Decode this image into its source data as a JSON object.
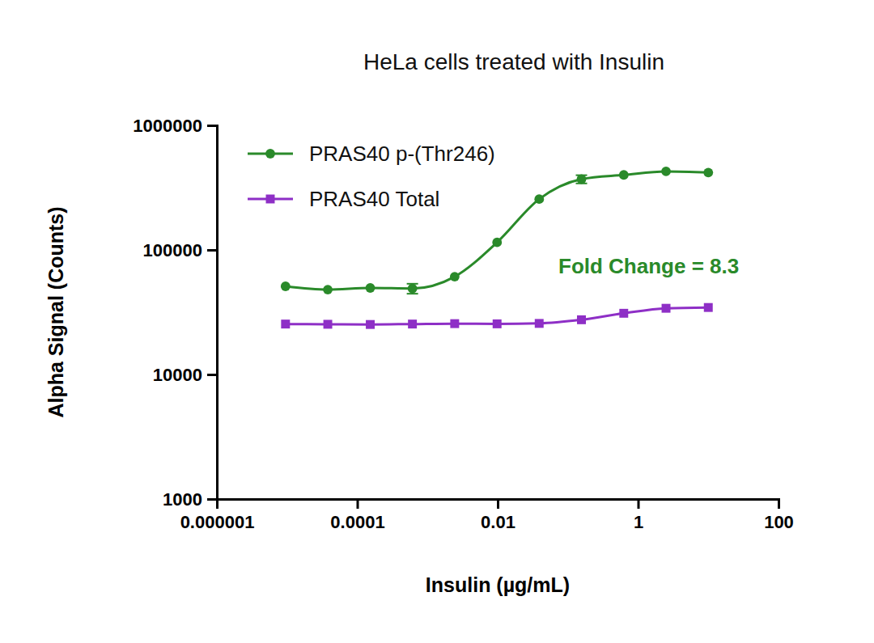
{
  "chart_data": {
    "type": "line",
    "title": "HeLa cells treated with Insulin",
    "x_label": "Insulin (µg/mL)",
    "y_label": "Alpha Signal (Counts)",
    "log": true,
    "grid": false,
    "legend": "upper left",
    "x": [
      9.5e-06,
      3.8e-05,
      0.000153,
      0.00061,
      0.00244,
      0.0098,
      0.039,
      0.156,
      0.625,
      2.5,
      10
    ],
    "xlim": [
      1e-06,
      100
    ],
    "xticks": [
      1e-06,
      0.0001,
      0.01,
      1,
      100
    ],
    "ylim": [
      1000,
      1000000
    ],
    "yticks": [
      1000,
      10000,
      100000,
      1000000
    ],
    "series": [
      {
        "name": "PRAS40 p-(Thr246)",
        "color": "#2a8a2a",
        "marker": "circle",
        "line_style": "solid",
        "values": [
          51000,
          48000,
          49500,
          49000,
          61000,
          115000,
          256000,
          370000,
          400000,
          427000,
          418000
        ],
        "errors": [
          null,
          null,
          null,
          4500,
          null,
          null,
          null,
          28000,
          null,
          null,
          null
        ]
      },
      {
        "name": "PRAS40 Total",
        "color": "#8e2fc6",
        "marker": "square",
        "line_style": "solid",
        "values": [
          25400,
          25300,
          25200,
          25400,
          25600,
          25500,
          25700,
          27500,
          31000,
          34000,
          34500
        ]
      }
    ],
    "annotations": [
      {
        "text": "Fold Change = 8.3",
        "color": "#2a8a2a"
      }
    ]
  }
}
